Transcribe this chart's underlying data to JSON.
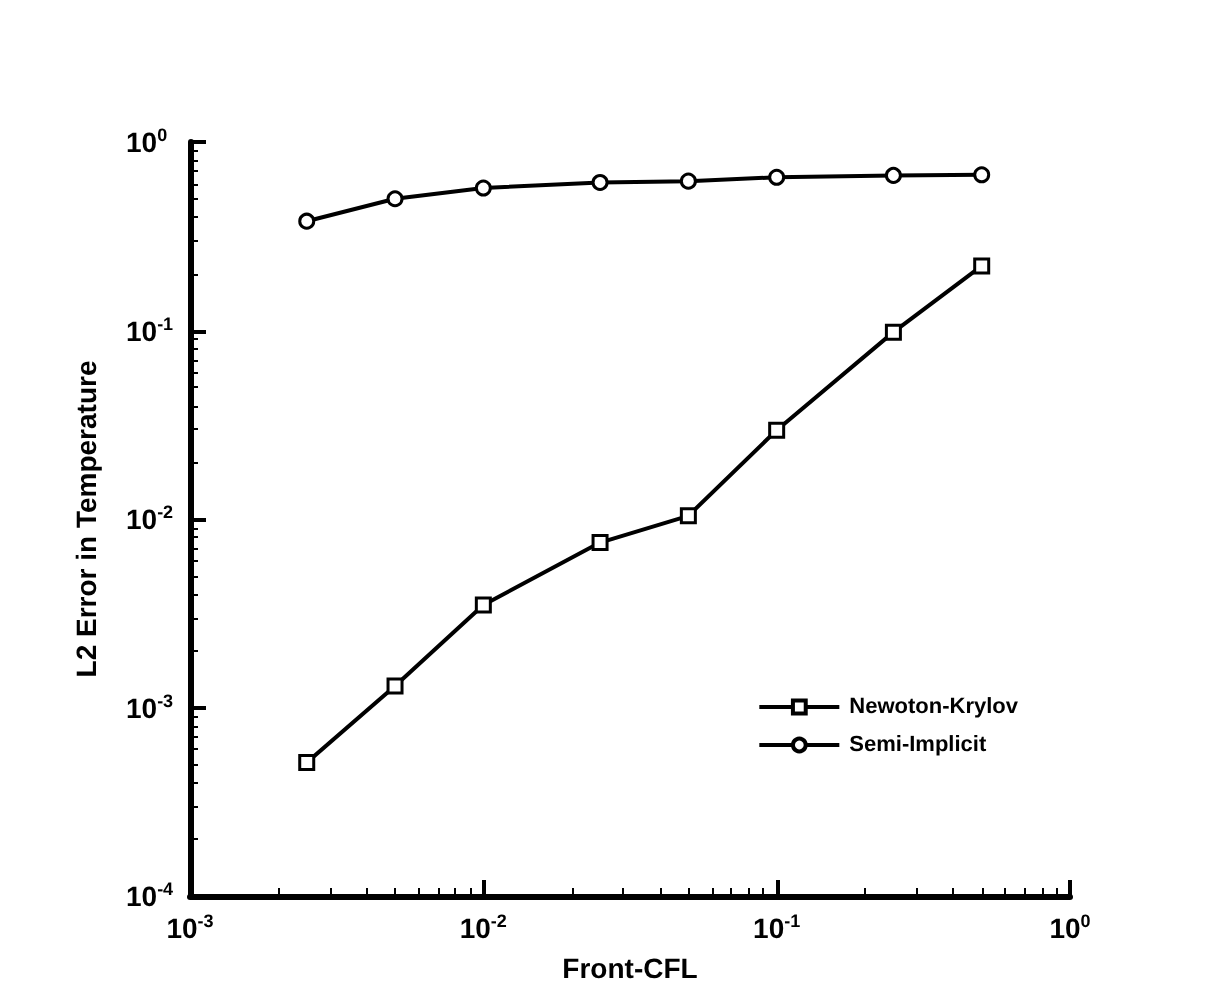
{
  "chart_data": {
    "type": "line",
    "xlabel": "Front-CFL",
    "ylabel": "L2 Error in Temperature",
    "x": [
      0.0025,
      0.005,
      0.01,
      0.025,
      0.05,
      0.1,
      0.25,
      0.5
    ],
    "series": [
      {
        "name": "Newoton-Krylov",
        "color": "#000000",
        "marker": "square",
        "values": [
          0.00051,
          0.0013,
          0.0035,
          0.0075,
          0.0104,
          0.0296,
          0.098,
          0.22
        ]
      },
      {
        "name": "Semi-Implicit",
        "color": "#000000",
        "marker": "circle",
        "values": [
          0.38,
          0.5,
          0.57,
          0.61,
          0.62,
          0.65,
          0.665,
          0.67
        ]
      }
    ],
    "log": "xy",
    "xlim": [
      0.001,
      1
    ],
    "ylim": [
      0.0001,
      1
    ],
    "xticks": [
      {
        "value": 0.001,
        "label": "10$^{-3}$"
      },
      {
        "value": 0.01,
        "label": "10$^{-2}$"
      },
      {
        "value": 0.1,
        "label": "10$^{-1}$"
      },
      {
        "value": 1,
        "label": "10$^{0}$"
      }
    ],
    "yticks": [
      {
        "value": 0.0001,
        "label": "10$^{-4}$"
      },
      {
        "value": 0.001,
        "label": "10$^{-3}$"
      },
      {
        "value": 0.01,
        "label": "10$^{-2}$"
      },
      {
        "value": 0.1,
        "label": "10$^{-1}$"
      },
      {
        "value": 1,
        "label": "10$^{0}$"
      }
    ],
    "grid": false,
    "legend": "bottom right",
    "line_style": "solid"
  }
}
